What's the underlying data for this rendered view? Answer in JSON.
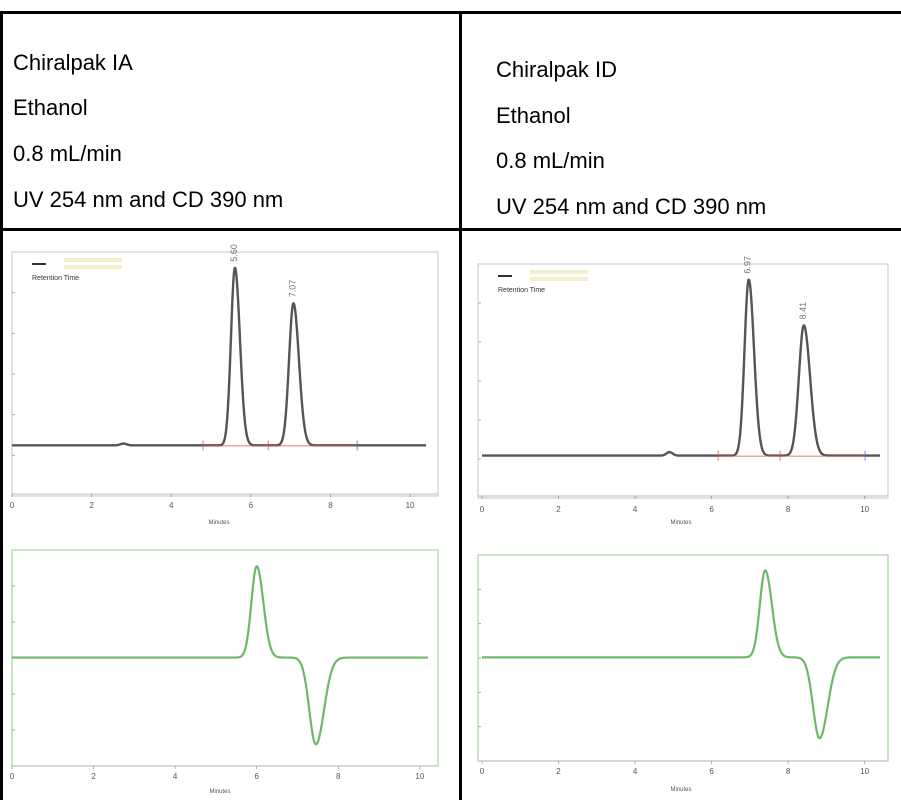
{
  "conditions": {
    "left": [
      "Chiralpak IA",
      "Ethanol",
      "0.8 mL/min",
      "UV 254 nm and CD 390 nm"
    ],
    "right": [
      "Chiralpak ID",
      "Ethanol",
      "0.8 mL/min",
      "UV 254 nm and CD 390 nm"
    ]
  },
  "colors": {
    "uv_trace": "#555555",
    "cd_trace": "#6fb86a",
    "baseline_marks": "#d9534f",
    "frame_green": "#a9d3a2"
  },
  "chart_data": [
    {
      "id": "ia_uv",
      "type": "line",
      "detector": "UV",
      "xlabel": "Minutes",
      "legend_label": "Retention Time",
      "xlim": [
        0,
        10.4
      ],
      "ylim": [
        -0.15,
        1.1
      ],
      "xticks": [
        0,
        2,
        4,
        6,
        8,
        10
      ],
      "peaks": [
        {
          "label": "5.60",
          "x": 5.6,
          "height": 1.0,
          "width": 0.1
        },
        {
          "label": "7.07",
          "x": 7.07,
          "height": 0.8,
          "width": 0.11
        }
      ],
      "minor_features": [
        {
          "x": 2.8,
          "height": 0.01
        }
      ]
    },
    {
      "id": "id_uv",
      "type": "line",
      "detector": "UV",
      "xlabel": "Minutes",
      "legend_label": "Retention Time",
      "xlim": [
        0,
        10.4
      ],
      "ylim": [
        -0.15,
        1.1
      ],
      "xticks": [
        0,
        2,
        4,
        6,
        8,
        10
      ],
      "peaks": [
        {
          "label": "6.97",
          "x": 6.97,
          "height": 1.0,
          "width": 0.11
        },
        {
          "label": "8.41",
          "x": 8.41,
          "height": 0.74,
          "width": 0.13
        }
      ],
      "minor_features": [
        {
          "x": 4.9,
          "height": 0.02
        }
      ]
    },
    {
      "id": "ia_cd",
      "type": "line",
      "detector": "CD",
      "xlabel": "Minutes",
      "xlim": [
        0,
        10.2
      ],
      "ylim": [
        -1.1,
        1.2
      ],
      "xticks": [
        0,
        2,
        4,
        6,
        8,
        10
      ],
      "peaks": [
        {
          "x": 6.0,
          "height": 1.0,
          "width": 0.13
        },
        {
          "x": 7.45,
          "height": -0.95,
          "width": 0.16
        }
      ]
    },
    {
      "id": "id_cd",
      "type": "line",
      "detector": "CD",
      "xlabel": "Minutes",
      "xlim": [
        0,
        10.4
      ],
      "ylim": [
        -1.1,
        1.2
      ],
      "xticks": [
        0,
        2,
        4,
        6,
        8,
        10
      ],
      "peaks": [
        {
          "x": 7.4,
          "height": 1.0,
          "width": 0.14
        },
        {
          "x": 8.82,
          "height": -0.93,
          "width": 0.17
        }
      ]
    }
  ]
}
